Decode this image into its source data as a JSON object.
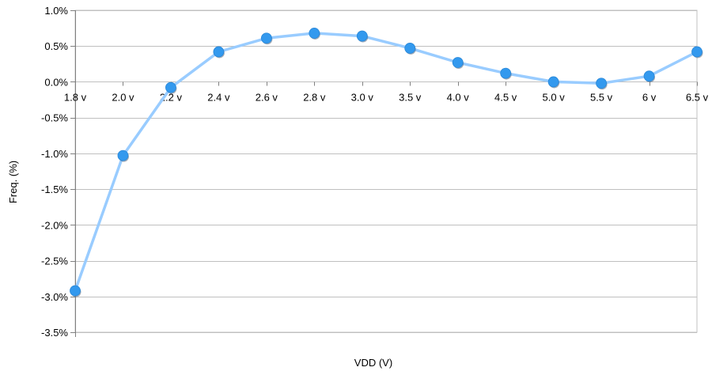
{
  "chart_data": {
    "type": "line",
    "title": "",
    "xlabel": "VDD (V)",
    "ylabel": "Freq. (%)",
    "categories": [
      "1.8 v",
      "2.0 v",
      "2.2 v",
      "2.4 v",
      "2.6 v",
      "2.8 v",
      "3.0 v",
      "3.5 v",
      "4.0 v",
      "4.5 v",
      "5.0 v",
      "5.5 v",
      "6 v",
      "6.5 v"
    ],
    "series": [
      {
        "values": [
          -2.92,
          -1.03,
          -0.08,
          0.42,
          0.61,
          0.68,
          0.64,
          0.47,
          0.27,
          0.12,
          0.0,
          -0.02,
          0.08,
          0.42
        ]
      }
    ],
    "ylim": [
      -3.5,
      1.0
    ],
    "yticks": [
      1.0,
      0.5,
      0.0,
      -0.5,
      -1.0,
      -1.5,
      -2.0,
      -2.5,
      -3.0,
      -3.5
    ],
    "ytick_labels": [
      "1.0%",
      "0.5%",
      "0.0%",
      "-0.5%",
      "-1.0%",
      "-1.5%",
      "-2.0%",
      "-2.5%",
      "-3.0%",
      "-3.5%"
    ],
    "grid": true,
    "legend": "none",
    "colors": {
      "line": "#99ccff",
      "marker": "#3399ee",
      "grid": "#c0c0c0"
    }
  }
}
